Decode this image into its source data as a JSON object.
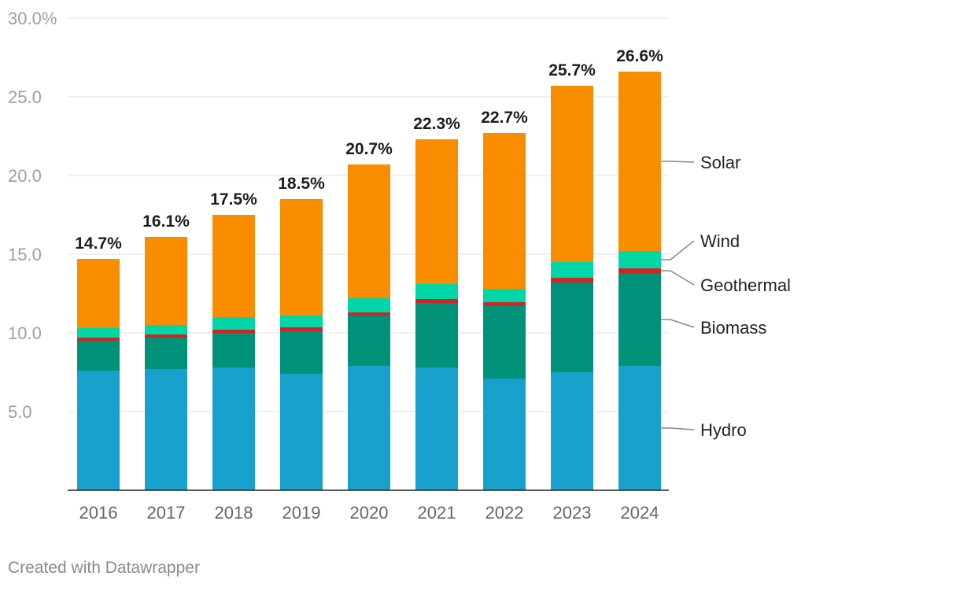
{
  "footer": "Created with Datawrapper",
  "chart_data": {
    "type": "bar",
    "stacked": true,
    "title": "",
    "xlabel": "",
    "ylabel": "",
    "ylim": [
      0,
      30
    ],
    "yticks": [
      {
        "value": 5,
        "label": "5.0"
      },
      {
        "value": 10,
        "label": "10.0"
      },
      {
        "value": 15,
        "label": "15.0"
      },
      {
        "value": 20,
        "label": "20.0"
      },
      {
        "value": 25,
        "label": "25.0"
      },
      {
        "value": 30,
        "label": "30.0%"
      }
    ],
    "categories": [
      "2016",
      "2017",
      "2018",
      "2019",
      "2020",
      "2021",
      "2022",
      "2023",
      "2024"
    ],
    "series": [
      {
        "name": "Hydro",
        "color": "#18a1cd",
        "values": [
          7.6,
          7.7,
          7.8,
          7.4,
          7.9,
          7.8,
          7.1,
          7.5,
          7.9
        ]
      },
      {
        "name": "Biomass",
        "color": "#009279",
        "values": [
          1.9,
          2.0,
          2.2,
          2.7,
          3.2,
          4.1,
          4.6,
          5.7,
          5.9
        ]
      },
      {
        "name": "Geothermal",
        "color": "#d02527",
        "values": [
          0.2,
          0.2,
          0.2,
          0.25,
          0.2,
          0.25,
          0.25,
          0.3,
          0.3
        ]
      },
      {
        "name": "Wind",
        "color": "#00d7a6",
        "values": [
          0.6,
          0.6,
          0.8,
          0.75,
          0.9,
          0.95,
          0.85,
          1.0,
          1.1
        ]
      },
      {
        "name": "Solar",
        "color": "#fa8c00",
        "values": [
          4.4,
          5.6,
          6.5,
          7.4,
          8.5,
          9.2,
          9.9,
          11.2,
          11.4
        ]
      }
    ],
    "totals": [
      "14.7%",
      "16.1%",
      "17.5%",
      "18.5%",
      "20.7%",
      "22.3%",
      "22.7%",
      "25.7%",
      "26.6%"
    ],
    "legend_placement": "right, labels at segments of last bar"
  }
}
